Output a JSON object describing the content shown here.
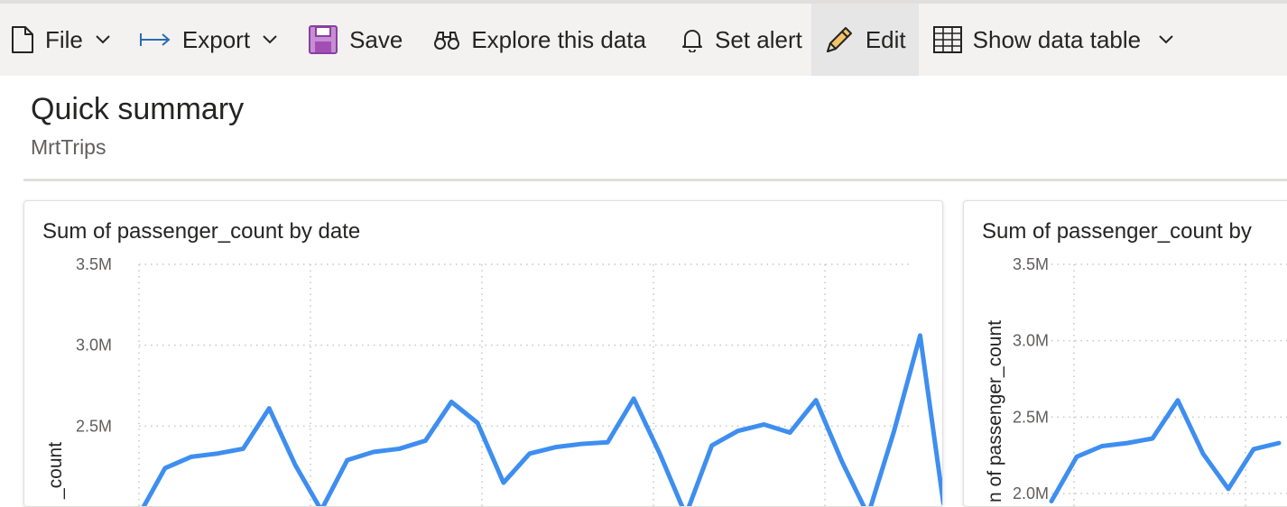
{
  "toolbar": {
    "items": [
      {
        "label": "File",
        "icon": "file-icon",
        "dropdown": true
      },
      {
        "label": "Export",
        "icon": "export-icon",
        "dropdown": true
      },
      {
        "label": "Save",
        "icon": "save-icon"
      },
      {
        "label": "Explore this data",
        "icon": "binoculars-icon"
      },
      {
        "label": "Set alert",
        "icon": "bell-icon"
      },
      {
        "label": "Edit",
        "icon": "pencil-icon",
        "active": true
      },
      {
        "label": "Show data table",
        "icon": "table-icon",
        "dropdown": true
      }
    ]
  },
  "page": {
    "title": "Quick summary",
    "subtitle": "MrtTrips"
  },
  "colors": {
    "line": "#3e8ef0",
    "save_icon": "#a24fb5",
    "export_arrow": "#2b6cb0"
  },
  "chart_data": [
    {
      "type": "line",
      "title": "Sum of passenger_count by date",
      "ylabel": "_count",
      "y_ticks": [
        "3.5M",
        "3.0M",
        "2.5M"
      ],
      "ylim": [
        2.0,
        3.5
      ],
      "grid": true,
      "series": [
        {
          "values": [
            1.95,
            2.24,
            2.31,
            2.33,
            2.36,
            2.61,
            2.26,
            1.98,
            2.29,
            2.34,
            2.36,
            2.41,
            2.65,
            2.52,
            2.15,
            2.33,
            2.37,
            2.39,
            2.4,
            2.67,
            2.33,
            1.95,
            2.38,
            2.47,
            2.51,
            2.46,
            2.66,
            2.28,
            1.95,
            2.47,
            3.06,
            1.9
          ]
        }
      ]
    },
    {
      "type": "line",
      "title": "Sum of passenger_count by",
      "ylabel": "n of passenger_count",
      "y_ticks": [
        "3.5M",
        "3.0M",
        "2.5M",
        "2.0M"
      ],
      "ylim": [
        2.0,
        3.5
      ],
      "grid": true,
      "series": [
        {
          "values": [
            1.95,
            2.24,
            2.31,
            2.33,
            2.36,
            2.61,
            2.26,
            2.03,
            2.29,
            2.33
          ]
        }
      ]
    }
  ]
}
